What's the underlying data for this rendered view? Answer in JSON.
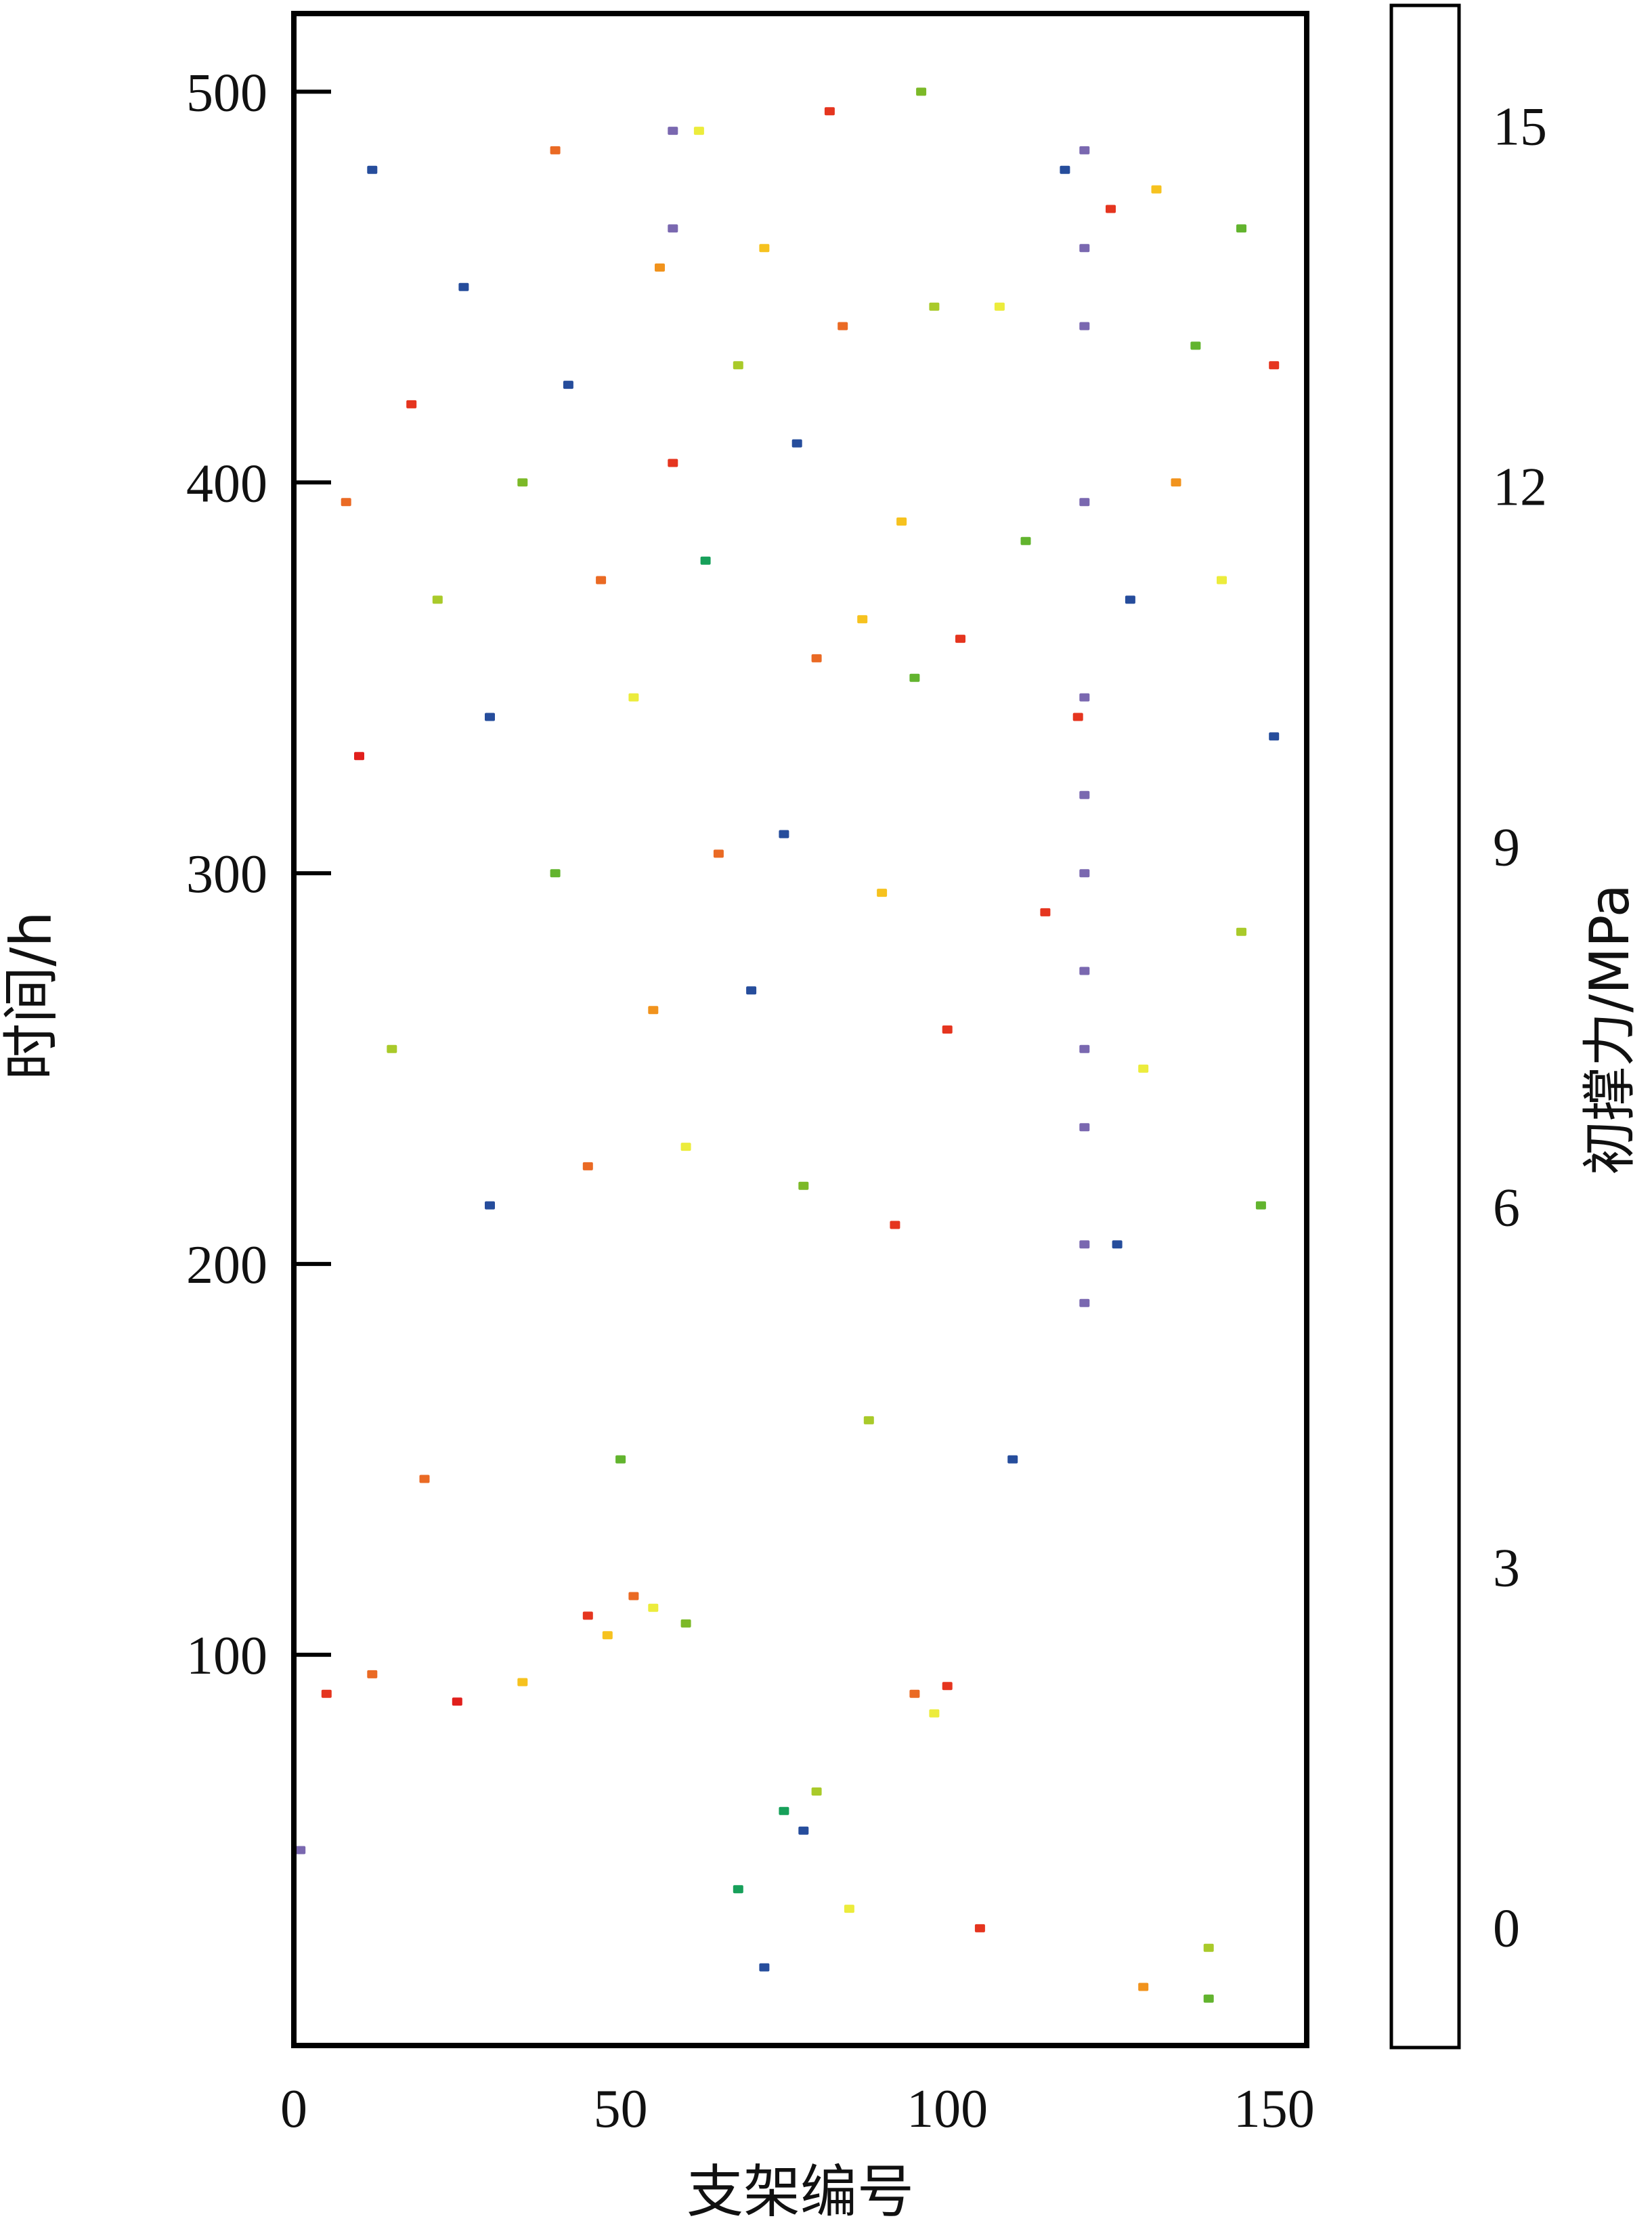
{
  "chart_data": {
    "type": "heatmap",
    "xlabel": "支架编号",
    "ylabel": "时间/h",
    "xlim": [
      0,
      155
    ],
    "ylim": [
      0,
      520
    ],
    "x_ticks": [
      "0",
      "50",
      "100",
      "150"
    ],
    "x_tick_values": [
      0,
      50,
      100,
      150
    ],
    "y_ticks": [
      "100",
      "200",
      "300",
      "400",
      "500"
    ],
    "y_tick_values": [
      100,
      200,
      300,
      400,
      500
    ],
    "colorbar": {
      "label": "初撑力/MPa",
      "range": [
        -1,
        16
      ],
      "ticks": [
        "0",
        "3",
        "6",
        "9",
        "12",
        "15"
      ],
      "tick_values": [
        0,
        3,
        6,
        9,
        12,
        15
      ],
      "colors": [
        "#7a68b0",
        "#5552a2",
        "#3b4a9e",
        "#2a4596",
        "#264d9c",
        "#0f4f99",
        "#17a05a",
        "#62b42e",
        "#7cb928",
        "#a9ca2a",
        "#ecec3c",
        "#f6c21f",
        "#f1931d",
        "#ea6a24",
        "#e84a24",
        "#e5351f",
        "#e11f1c"
      ]
    },
    "series": [
      {
        "x": [
          58,
          121,
          58,
          121,
          121,
          121,
          121,
          121,
          121,
          121,
          1,
          121,
          121,
          121,
          121
        ],
        "y": [
          490,
          485,
          465,
          460,
          440,
          395,
          345,
          320,
          300,
          275,
          50,
          255,
          235,
          205,
          190
        ],
        "values": [
          -1,
          -1,
          -1,
          -1,
          -1,
          -1,
          -1,
          -1,
          -1,
          -1,
          -1,
          -1,
          -1,
          -1,
          -1
        ]
      },
      {
        "x": [
          45,
          52,
          55,
          48,
          60,
          75,
          78,
          80,
          95,
          98,
          100,
          72,
          130,
          140,
          5,
          12,
          25,
          35,
          88,
          110,
          20,
          50,
          68,
          85,
          105,
          140,
          30,
          45,
          60,
          78,
          92,
          126,
          148,
          15,
          55,
          70,
          100,
          130,
          40,
          65,
          75,
          90,
          115,
          145,
          10,
          30,
          52,
          80,
          95,
          120,
          150,
          22,
          47,
          63,
          87,
          102,
          128,
          142,
          8,
          35,
          58,
          77,
          93,
          112,
          135,
          18,
          42,
          68,
          84,
          108,
          138,
          150,
          26,
          56,
          72,
          98,
          125,
          145,
          12,
          40,
          62,
          82,
          96,
          118,
          132
        ],
        "y": [
          110,
          115,
          112,
          105,
          108,
          60,
          55,
          65,
          90,
          85,
          92,
          20,
          15,
          12,
          90,
          95,
          88,
          93,
          160,
          150,
          145,
          150,
          40,
          35,
          30,
          25,
          215,
          225,
          230,
          220,
          210,
          205,
          215,
          255,
          265,
          270,
          260,
          250,
          300,
          305,
          310,
          295,
          290,
          285,
          330,
          340,
          345,
          355,
          350,
          340,
          335,
          370,
          375,
          380,
          365,
          360,
          370,
          375,
          395,
          400,
          405,
          410,
          390,
          385,
          400,
          420,
          425,
          430,
          440,
          445,
          435,
          430,
          450,
          455,
          460,
          445,
          470,
          465,
          480,
          485,
          490,
          495,
          500,
          480,
          475
        ],
        "values": [
          14,
          12,
          9,
          10,
          7,
          5,
          3,
          8,
          12,
          9,
          14,
          3,
          11,
          6,
          14,
          12,
          15,
          10,
          8,
          3,
          12,
          6,
          5,
          9,
          14,
          8,
          3,
          12,
          9,
          7,
          14,
          3,
          6,
          8,
          11,
          3,
          14,
          9,
          6,
          12,
          3,
          10,
          14,
          8,
          15,
          3,
          9,
          12,
          6,
          14,
          3,
          8,
          12,
          5,
          10,
          14,
          3,
          9,
          12,
          7,
          14,
          3,
          10,
          6,
          11,
          14,
          3,
          8,
          12,
          9,
          6,
          14,
          3,
          11,
          10,
          8,
          14,
          6,
          3,
          12,
          9,
          14,
          7,
          3,
          10
        ]
      }
    ]
  }
}
